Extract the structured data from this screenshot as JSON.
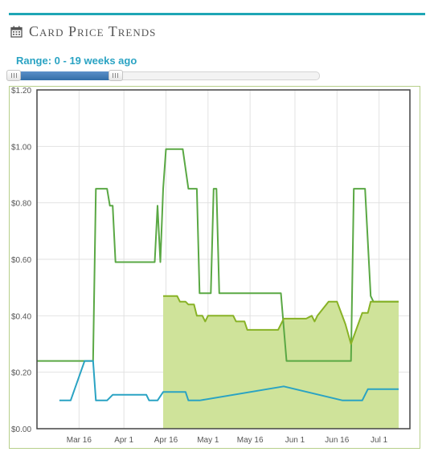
{
  "header": {
    "title": "Card Price Trends",
    "icon": "calendar-icon"
  },
  "range": {
    "label": "Range: 0 - 19 weeks ago",
    "low_weeks_ago": 0,
    "high_weeks_ago": 19,
    "selected_fraction": 0.35
  },
  "colors": {
    "accent": "#1ea6b5",
    "range_text": "#2aa3c3",
    "series_high": "#5aa844",
    "series_mid": "#88b226",
    "series_mid_fill": "#cfe39a",
    "series_low": "#2aa3c3",
    "frame": "#b7cf8a"
  },
  "chart_data": {
    "type": "line",
    "ylim": [
      0,
      1.2
    ],
    "y_ticks": [
      {
        "value": 0.0,
        "label": "$0.00"
      },
      {
        "value": 0.2,
        "label": "$0.20"
      },
      {
        "value": 0.4,
        "label": "$0.40"
      },
      {
        "value": 0.6,
        "label": "$0.60"
      },
      {
        "value": 0.8,
        "label": "$0.80"
      },
      {
        "value": 1.0,
        "label": "$1.00"
      },
      {
        "value": 1.2,
        "label": "$1.20"
      }
    ],
    "x_ticks": [
      {
        "date": "2024-03-16",
        "label": "Mar 16"
      },
      {
        "date": "2024-04-01",
        "label": "Apr 1"
      },
      {
        "date": "2024-04-16",
        "label": "Apr 16"
      },
      {
        "date": "2024-05-01",
        "label": "May 1"
      },
      {
        "date": "2024-05-16",
        "label": "May 16"
      },
      {
        "date": "2024-06-01",
        "label": "Jun 1"
      },
      {
        "date": "2024-06-16",
        "label": "Jun 16"
      },
      {
        "date": "2024-07-01",
        "label": "Jul 1"
      }
    ],
    "xlim": [
      "2024-03-01",
      "2024-07-12"
    ],
    "grid": true,
    "series": [
      {
        "key": "high",
        "style": "line",
        "points": [
          [
            "2024-03-01",
            0.24
          ],
          [
            "2024-03-21",
            0.24
          ],
          [
            "2024-03-22",
            0.85
          ],
          [
            "2024-03-26",
            0.85
          ],
          [
            "2024-03-27",
            0.79
          ],
          [
            "2024-03-28",
            0.79
          ],
          [
            "2024-03-29",
            0.59
          ],
          [
            "2024-04-12",
            0.59
          ],
          [
            "2024-04-13",
            0.79
          ],
          [
            "2024-04-14",
            0.59
          ],
          [
            "2024-04-15",
            0.85
          ],
          [
            "2024-04-16",
            0.99
          ],
          [
            "2024-04-22",
            0.99
          ],
          [
            "2024-04-24",
            0.85
          ],
          [
            "2024-04-27",
            0.85
          ],
          [
            "2024-04-28",
            0.48
          ],
          [
            "2024-05-02",
            0.48
          ],
          [
            "2024-05-03",
            0.85
          ],
          [
            "2024-05-04",
            0.85
          ],
          [
            "2024-05-05",
            0.48
          ],
          [
            "2024-05-27",
            0.48
          ],
          [
            "2024-05-29",
            0.24
          ],
          [
            "2024-06-21",
            0.24
          ],
          [
            "2024-06-22",
            0.85
          ],
          [
            "2024-06-26",
            0.85
          ],
          [
            "2024-06-28",
            0.47
          ],
          [
            "2024-06-29",
            0.45
          ],
          [
            "2024-07-08",
            0.45
          ]
        ]
      },
      {
        "key": "mid",
        "style": "area",
        "points": [
          [
            "2024-04-15",
            0.47
          ],
          [
            "2024-04-20",
            0.47
          ],
          [
            "2024-04-21",
            0.45
          ],
          [
            "2024-04-23",
            0.45
          ],
          [
            "2024-04-24",
            0.44
          ],
          [
            "2024-04-26",
            0.44
          ],
          [
            "2024-04-27",
            0.4
          ],
          [
            "2024-04-29",
            0.4
          ],
          [
            "2024-04-30",
            0.38
          ],
          [
            "2024-05-01",
            0.4
          ],
          [
            "2024-05-10",
            0.4
          ],
          [
            "2024-05-11",
            0.38
          ],
          [
            "2024-05-14",
            0.38
          ],
          [
            "2024-05-15",
            0.35
          ],
          [
            "2024-05-26",
            0.35
          ],
          [
            "2024-05-28",
            0.39
          ],
          [
            "2024-06-05",
            0.39
          ],
          [
            "2024-06-07",
            0.4
          ],
          [
            "2024-06-08",
            0.38
          ],
          [
            "2024-06-09",
            0.4
          ],
          [
            "2024-06-13",
            0.45
          ],
          [
            "2024-06-16",
            0.45
          ],
          [
            "2024-06-19",
            0.37
          ],
          [
            "2024-06-21",
            0.3
          ],
          [
            "2024-06-25",
            0.41
          ],
          [
            "2024-06-27",
            0.41
          ],
          [
            "2024-06-28",
            0.45
          ],
          [
            "2024-07-08",
            0.45
          ]
        ]
      },
      {
        "key": "low",
        "style": "line",
        "points": [
          [
            "2024-03-09",
            0.1
          ],
          [
            "2024-03-13",
            0.1
          ],
          [
            "2024-03-18",
            0.24
          ],
          [
            "2024-03-21",
            0.24
          ],
          [
            "2024-03-22",
            0.1
          ],
          [
            "2024-03-26",
            0.1
          ],
          [
            "2024-03-28",
            0.12
          ],
          [
            "2024-04-09",
            0.12
          ],
          [
            "2024-04-10",
            0.1
          ],
          [
            "2024-04-13",
            0.1
          ],
          [
            "2024-04-15",
            0.13
          ],
          [
            "2024-04-23",
            0.13
          ],
          [
            "2024-04-24",
            0.1
          ],
          [
            "2024-04-28",
            0.1
          ],
          [
            "2024-05-28",
            0.15
          ],
          [
            "2024-06-18",
            0.1
          ],
          [
            "2024-06-25",
            0.1
          ],
          [
            "2024-06-27",
            0.14
          ],
          [
            "2024-07-08",
            0.14
          ]
        ]
      }
    ]
  }
}
